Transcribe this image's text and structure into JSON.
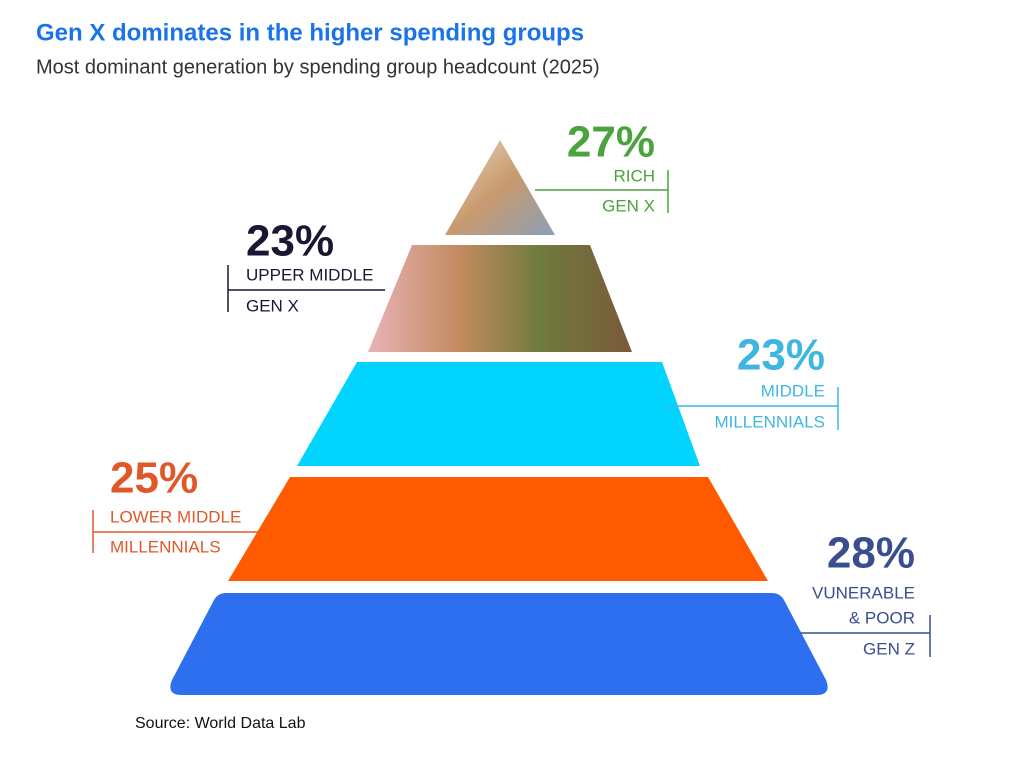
{
  "header": {
    "title": "Gen X dominates in the higher spending groups",
    "subtitle": "Most dominant generation by spending group headcount (2025)"
  },
  "tiers": [
    {
      "percent": "27%",
      "group": [
        "RICH"
      ],
      "generation": "GEN X"
    },
    {
      "percent": "23%",
      "group": [
        "UPPER MIDDLE"
      ],
      "generation": "GEN X"
    },
    {
      "percent": "23%",
      "group": [
        "MIDDLE"
      ],
      "generation": "MILLENNIALS"
    },
    {
      "percent": "25%",
      "group": [
        "LOWER MIDDLE"
      ],
      "generation": "MILLENNIALS"
    },
    {
      "percent": "28%",
      "group": [
        "VUNERABLE",
        "& POOR"
      ],
      "generation": "GEN Z"
    }
  ],
  "source": "Source: World Data Lab"
}
